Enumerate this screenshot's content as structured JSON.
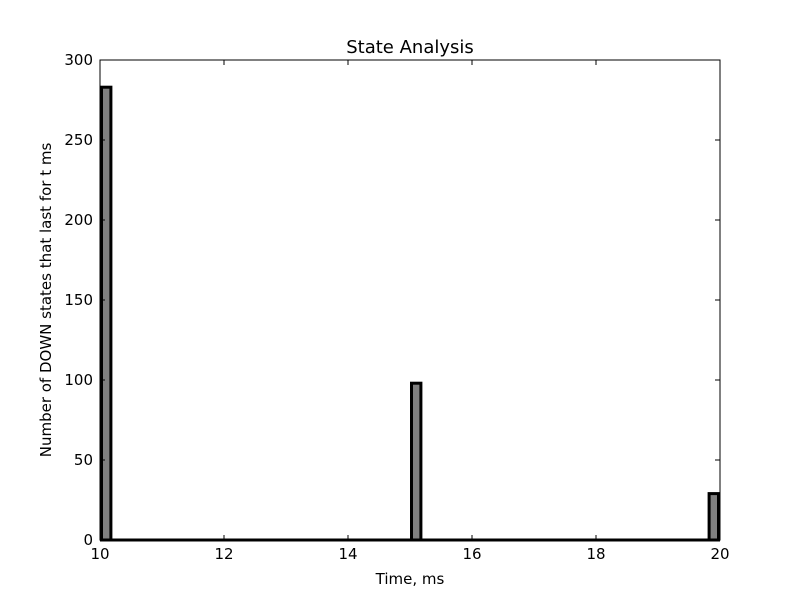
{
  "chart_data": {
    "type": "bar",
    "title": "State Analysis",
    "xlabel": "Time, ms",
    "ylabel": "Number of DOWN states that last for t ms",
    "xlim": [
      10,
      20
    ],
    "ylim": [
      0,
      300
    ],
    "xticks": [
      "10",
      "12",
      "14",
      "16",
      "18",
      "20"
    ],
    "yticks": [
      "0",
      "50",
      "100",
      "150",
      "200",
      "250",
      "300"
    ],
    "bins": [
      {
        "x_start": 10.0,
        "x_end": 10.2,
        "value": 283
      },
      {
        "x_start": 15.0,
        "x_end": 15.2,
        "value": 98
      },
      {
        "x_start": 19.8,
        "x_end": 20.0,
        "value": 29
      }
    ],
    "bar_color": "#808080",
    "edge_color": "#000000",
    "grid": false
  }
}
